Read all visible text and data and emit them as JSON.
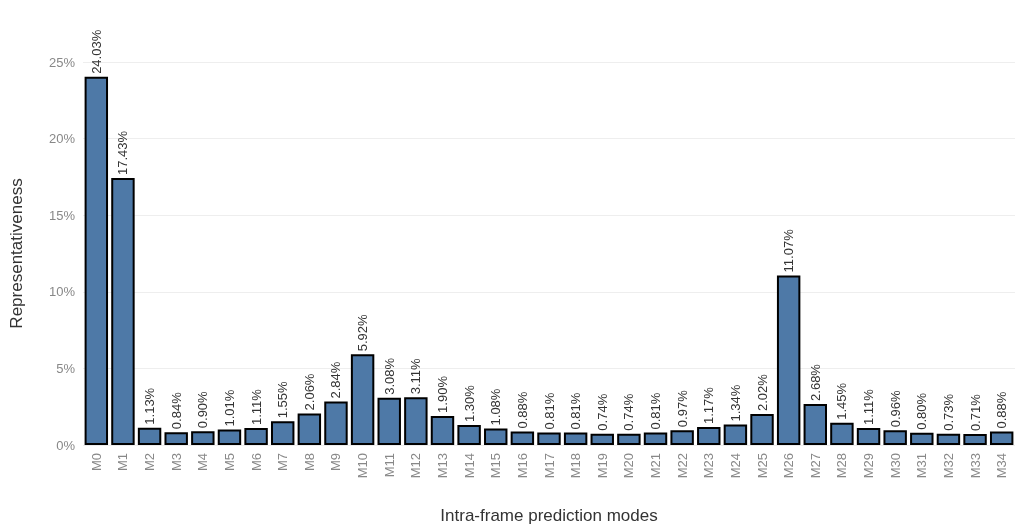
{
  "chart_data": {
    "type": "bar",
    "xlabel": "Intra-frame prediction modes",
    "ylabel": "Representativeness",
    "categories": [
      "M0",
      "M1",
      "M2",
      "M3",
      "M4",
      "M5",
      "M6",
      "M7",
      "M8",
      "M9",
      "M10",
      "M11",
      "M12",
      "M13",
      "M14",
      "M15",
      "M16",
      "M17",
      "M18",
      "M19",
      "M20",
      "M21",
      "M22",
      "M23",
      "M24",
      "M25",
      "M26",
      "M27",
      "M28",
      "M29",
      "M30",
      "M31",
      "M32",
      "M33",
      "M34"
    ],
    "values": [
      24.03,
      17.43,
      1.13,
      0.84,
      0.9,
      1.01,
      1.11,
      1.55,
      2.06,
      2.84,
      5.92,
      3.08,
      3.11,
      1.9,
      1.3,
      1.08,
      0.88,
      0.81,
      0.81,
      0.74,
      0.74,
      0.81,
      0.97,
      1.17,
      1.34,
      2.02,
      11.07,
      2.68,
      1.45,
      1.11,
      0.96,
      0.8,
      0.73,
      0.71,
      0.88
    ],
    "value_labels": [
      "24.03%",
      "17.43%",
      "1.13%",
      "0.84%",
      "0.90%",
      "1.01%",
      "1.11%",
      "1.55%",
      "2.06%",
      "2.84%",
      "5.92%",
      "3.08%",
      "3.11%",
      "1.90%",
      "1.30%",
      "1.08%",
      "0.88%",
      "0.81%",
      "0.81%",
      "0.74%",
      "0.74%",
      "0.81%",
      "0.97%",
      "1.17%",
      "1.34%",
      "2.02%",
      "11.07%",
      "2.68%",
      "1.45%",
      "1.11%",
      "0.96%",
      "0.80%",
      "0.73%",
      "0.71%",
      "0.88%"
    ],
    "color": "#4e79a7",
    "ylim": [
      0,
      25
    ],
    "yticks": [
      {
        "value": 0,
        "label": "0%"
      },
      {
        "value": 5,
        "label": "5%"
      },
      {
        "value": 10,
        "label": "10%"
      },
      {
        "value": 15,
        "label": "15%"
      },
      {
        "value": 20,
        "label": "20%"
      },
      {
        "value": 25,
        "label": "25%"
      }
    ],
    "grid": "y"
  }
}
